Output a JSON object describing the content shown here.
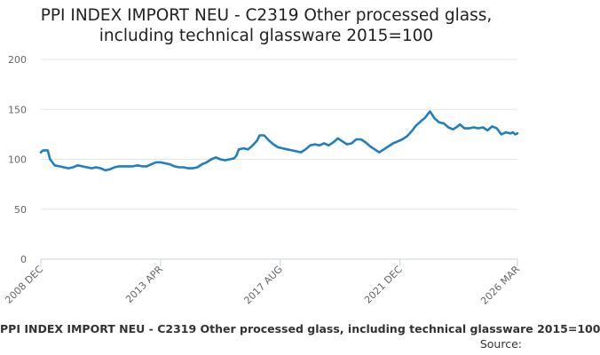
{
  "chart_data": {
    "type": "line",
    "title": "PPI INDEX IMPORT NEU - C2319 Other processed glass, including technical glassware 2015=100",
    "title_lines": [
      "PPI INDEX IMPORT NEU - C2319 Other processed glass,",
      "including technical glassware 2015=100"
    ],
    "xlabel": "",
    "ylabel": "",
    "ylim": [
      0,
      200
    ],
    "yticks": [
      0,
      50,
      100,
      150,
      200
    ],
    "x_tick_labels": [
      "2008 DEC",
      "2013 APR",
      "2017 AUG",
      "2021 DEC",
      "2026 MAR"
    ],
    "x_range": [
      "2008-12",
      "2026-03"
    ],
    "grid": "horizontal",
    "line_color": "#1f7fc0",
    "series": [
      {
        "name": "PPI INDEX IMPORT NEU - C2319 Other processed glass, including technical glassware 2015=100",
        "points": [
          [
            "2008-12",
            107
          ],
          [
            "2009-01",
            109
          ],
          [
            "2009-03",
            109
          ],
          [
            "2009-04",
            100
          ],
          [
            "2009-06",
            94
          ],
          [
            "2009-08",
            93
          ],
          [
            "2009-10",
            92
          ],
          [
            "2009-12",
            91
          ],
          [
            "2010-02",
            92
          ],
          [
            "2010-04",
            94
          ],
          [
            "2010-06",
            93
          ],
          [
            "2010-08",
            92
          ],
          [
            "2010-10",
            91
          ],
          [
            "2010-12",
            92
          ],
          [
            "2011-02",
            91
          ],
          [
            "2011-04",
            89
          ],
          [
            "2011-06",
            90
          ],
          [
            "2011-08",
            92
          ],
          [
            "2011-10",
            93
          ],
          [
            "2011-12",
            93
          ],
          [
            "2012-02",
            93
          ],
          [
            "2012-04",
            93
          ],
          [
            "2012-06",
            94
          ],
          [
            "2012-08",
            93
          ],
          [
            "2012-10",
            93
          ],
          [
            "2012-12",
            95
          ],
          [
            "2013-02",
            97
          ],
          [
            "2013-04",
            97
          ],
          [
            "2013-06",
            96
          ],
          [
            "2013-08",
            95
          ],
          [
            "2013-10",
            93
          ],
          [
            "2013-12",
            92
          ],
          [
            "2014-02",
            92
          ],
          [
            "2014-04",
            91
          ],
          [
            "2014-06",
            91
          ],
          [
            "2014-08",
            92
          ],
          [
            "2014-10",
            95
          ],
          [
            "2014-12",
            97
          ],
          [
            "2015-02",
            100
          ],
          [
            "2015-04",
            102
          ],
          [
            "2015-06",
            100
          ],
          [
            "2015-08",
            99
          ],
          [
            "2015-10",
            100
          ],
          [
            "2015-12",
            101
          ],
          [
            "2016-01",
            104
          ],
          [
            "2016-02",
            110
          ],
          [
            "2016-04",
            111
          ],
          [
            "2016-06",
            110
          ],
          [
            "2016-08",
            114
          ],
          [
            "2016-10",
            119
          ],
          [
            "2016-11",
            124
          ],
          [
            "2017-01",
            124
          ],
          [
            "2017-03",
            119
          ],
          [
            "2017-05",
            115
          ],
          [
            "2017-07",
            112
          ],
          [
            "2017-09",
            111
          ],
          [
            "2017-11",
            110
          ],
          [
            "2018-01",
            109
          ],
          [
            "2018-03",
            108
          ],
          [
            "2018-05",
            107
          ],
          [
            "2018-07",
            110
          ],
          [
            "2018-09",
            114
          ],
          [
            "2018-11",
            115
          ],
          [
            "2019-01",
            114
          ],
          [
            "2019-03",
            116
          ],
          [
            "2019-05",
            114
          ],
          [
            "2019-07",
            117
          ],
          [
            "2019-09",
            121
          ],
          [
            "2019-11",
            118
          ],
          [
            "2020-01",
            115
          ],
          [
            "2020-03",
            116
          ],
          [
            "2020-05",
            120
          ],
          [
            "2020-07",
            120
          ],
          [
            "2020-09",
            117
          ],
          [
            "2020-11",
            113
          ],
          [
            "2021-01",
            110
          ],
          [
            "2021-03",
            107
          ],
          [
            "2021-05",
            110
          ],
          [
            "2021-07",
            113
          ],
          [
            "2021-09",
            116
          ],
          [
            "2021-11",
            118
          ],
          [
            "2022-01",
            120
          ],
          [
            "2022-03",
            123
          ],
          [
            "2022-05",
            128
          ],
          [
            "2022-07",
            134
          ],
          [
            "2022-09",
            138
          ],
          [
            "2022-11",
            142
          ],
          [
            "2023-01",
            148
          ],
          [
            "2023-03",
            141
          ],
          [
            "2023-05",
            137
          ],
          [
            "2023-07",
            136
          ],
          [
            "2023-09",
            132
          ],
          [
            "2023-11",
            130
          ],
          [
            "2024-01",
            133
          ],
          [
            "2024-02",
            135
          ],
          [
            "2024-04",
            131
          ],
          [
            "2024-06",
            131
          ],
          [
            "2024-08",
            132
          ],
          [
            "2024-10",
            131
          ],
          [
            "2024-12",
            132
          ],
          [
            "2025-02",
            129
          ],
          [
            "2025-04",
            133
          ],
          [
            "2025-06",
            131
          ],
          [
            "2025-08",
            125
          ],
          [
            "2025-10",
            127
          ],
          [
            "2025-12",
            126
          ],
          [
            "2026-01",
            127
          ],
          [
            "2026-02",
            125
          ],
          [
            "2026-03",
            126
          ]
        ]
      }
    ]
  },
  "footer": {
    "legend_text": "PPI INDEX IMPORT NEU - C2319 Other processed glass, including technical glassware 2015=100",
    "source_label": "Source:"
  }
}
